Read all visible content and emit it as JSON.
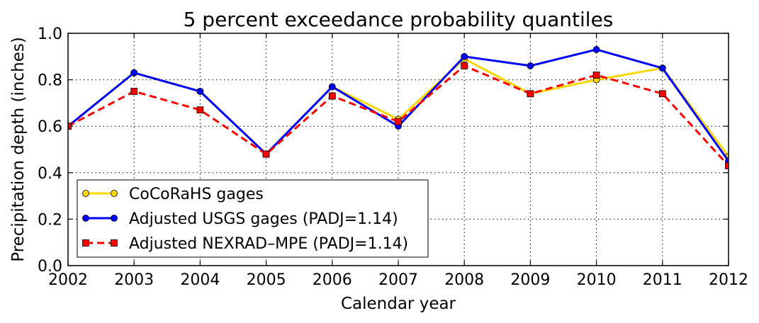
{
  "chart_data": {
    "type": "line",
    "title": "5 percent exceedance probability quantiles",
    "xlabel": "Calendar year",
    "ylabel": "Precipitation depth (inches)",
    "xlim": [
      2002,
      2012
    ],
    "ylim": [
      0.0,
      1.0
    ],
    "x_ticks": [
      2002,
      2003,
      2004,
      2005,
      2006,
      2007,
      2008,
      2009,
      2010,
      2011,
      2012
    ],
    "y_ticks": [
      0.0,
      0.2,
      0.4,
      0.6,
      0.8,
      1.0
    ],
    "x_tick_labels": [
      "2002",
      "2003",
      "2004",
      "2005",
      "2006",
      "2007",
      "2008",
      "2009",
      "2010",
      "2011",
      "2012"
    ],
    "y_tick_labels": [
      "0.0",
      "0.2",
      "0.4",
      "0.6",
      "0.8",
      "1.0"
    ],
    "grid": true,
    "legend_position": "lower-left",
    "x": [
      2002,
      2003,
      2004,
      2005,
      2006,
      2007,
      2008,
      2009,
      2010,
      2011,
      2012
    ],
    "series": [
      {
        "name": "CoCoRaHS gages",
        "values": [
          0.6,
          0.83,
          0.75,
          0.48,
          0.77,
          0.63,
          0.89,
          0.74,
          0.8,
          0.85,
          0.47
        ],
        "color": "#FFD700",
        "marker": "circle",
        "line_style": "solid"
      },
      {
        "name": "Adjusted USGS gages (PADJ=1.14)",
        "values": [
          0.6,
          0.83,
          0.75,
          0.48,
          0.77,
          0.6,
          0.9,
          0.86,
          0.93,
          0.85,
          0.45
        ],
        "color": "#0000FF",
        "marker": "circle",
        "line_style": "solid"
      },
      {
        "name": "Adjusted NEXRAD–MPE (PADJ=1.14)",
        "values": [
          0.6,
          0.75,
          0.67,
          0.48,
          0.73,
          0.62,
          0.86,
          0.74,
          0.82,
          0.74,
          0.43
        ],
        "color": "#FF0000",
        "marker": "square",
        "line_style": "dashed"
      }
    ]
  }
}
